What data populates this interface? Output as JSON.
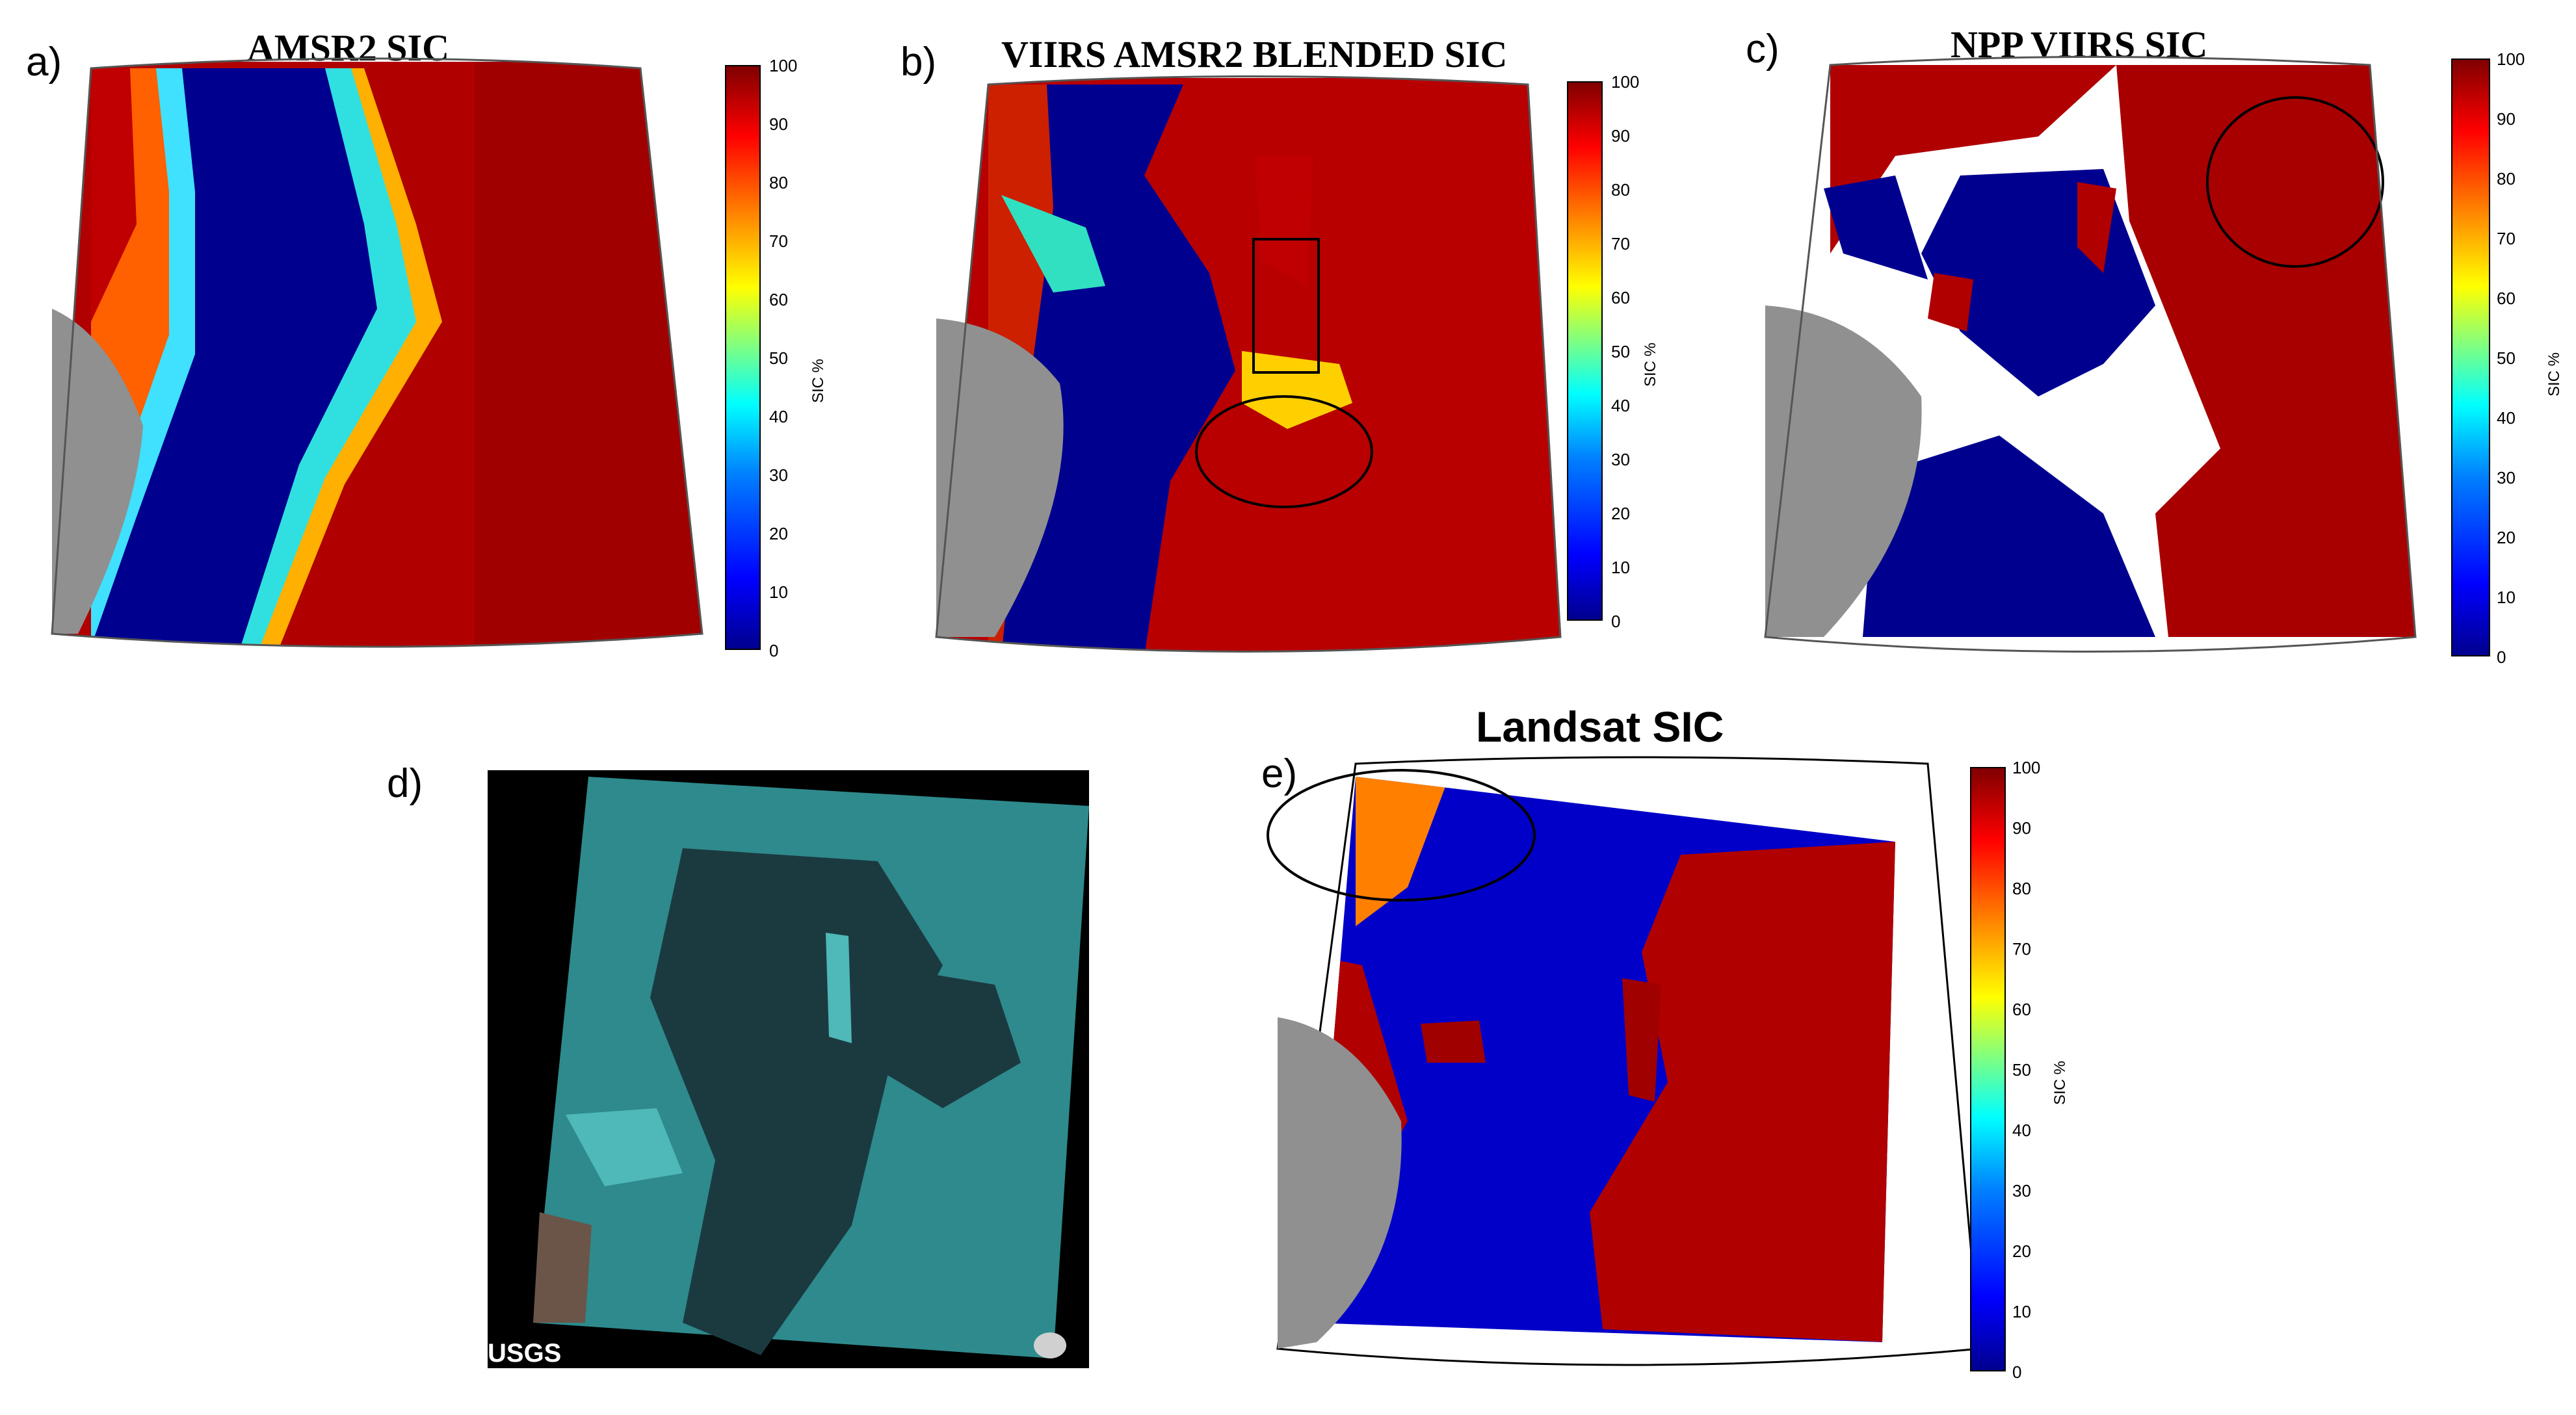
{
  "panels": {
    "a": {
      "label": "a)",
      "title": "AMSR2 SIC"
    },
    "b": {
      "label": "b)",
      "title": "VIIRS AMSR2 BLENDED SIC"
    },
    "c": {
      "label": "c)",
      "title": "NPP VIIRS SIC"
    },
    "d": {
      "label": "d)",
      "watermark": "USGS"
    },
    "e": {
      "label": "e)",
      "title": "Landsat SIC"
    }
  },
  "colorbar": {
    "unit": "SIC %",
    "ticks": [
      "0",
      "10",
      "20",
      "30",
      "40",
      "50",
      "60",
      "70",
      "80",
      "90",
      "100"
    ]
  },
  "colors": {
    "water": "#00008f",
    "ice": "#b00000",
    "land": "#909090",
    "satellite_bg": "#000000",
    "satellite_ice": "#2e8a8c"
  }
}
